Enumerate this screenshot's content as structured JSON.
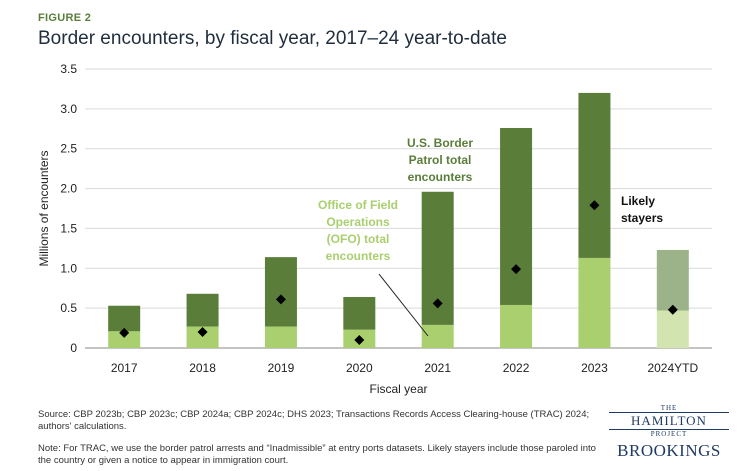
{
  "figure_label": "FIGURE 2",
  "title": "Border encounters, by fiscal year, 2017–24 year-to-date",
  "source": "Source: CBP 2023b; CBP 2023c; CBP 2024a; CBP 2024c; DHS 2023; Transactions Records Access Clearing-house (TRAC) 2024; authors' calculations.",
  "note": "Note: For TRAC, we use the border patrol arrests and “Inadmissible” at entry ports datasets. Likely stayers include those paroled into the country or given a notice to appear in immigration court.",
  "logos": {
    "the": "THE",
    "hamilton": "HAMILTON",
    "project": "PROJECT",
    "brookings": "BROOKINGS"
  },
  "colors": {
    "border_patrol": "#5a7d3a",
    "ofo": "#a9cf6e",
    "border_patrol_ytd": "#9cb38a",
    "ofo_ytd": "#d2e5b0",
    "marker": "#000000",
    "grid": "#d9d9d9"
  },
  "chart_data": {
    "type": "bar",
    "stacked": true,
    "categories": [
      "2017",
      "2018",
      "2019",
      "2020",
      "2021",
      "2022",
      "2023",
      "2024YTD"
    ],
    "series": [
      {
        "name": "Office of Field Operations (OFO) total encounters",
        "values": [
          0.21,
          0.27,
          0.27,
          0.23,
          0.29,
          0.54,
          1.13,
          0.47
        ]
      },
      {
        "name": "U.S. Border Patrol total encounters",
        "values": [
          0.32,
          0.41,
          0.87,
          0.41,
          1.67,
          2.22,
          2.07,
          0.76
        ]
      }
    ],
    "markers": {
      "name": "Likely stayers",
      "values": [
        0.19,
        0.2,
        0.61,
        0.1,
        0.56,
        0.99,
        1.79,
        0.48
      ]
    },
    "xlabel": "Fiscal year",
    "ylabel": "Millions of encounters",
    "ylim": [
      0,
      3.5
    ],
    "yticks": [
      "0",
      "0.5",
      "1.0",
      "1.5",
      "2.0",
      "2.5",
      "3.0",
      "3.5"
    ],
    "annotations": {
      "border_patrol": [
        "U.S. Border",
        "Patrol total",
        "encounters"
      ],
      "ofo": [
        "Office of Field",
        "Operations",
        "(OFO) total",
        "encounters"
      ],
      "stayers": [
        "Likely",
        "stayers"
      ]
    },
    "grid": true
  }
}
